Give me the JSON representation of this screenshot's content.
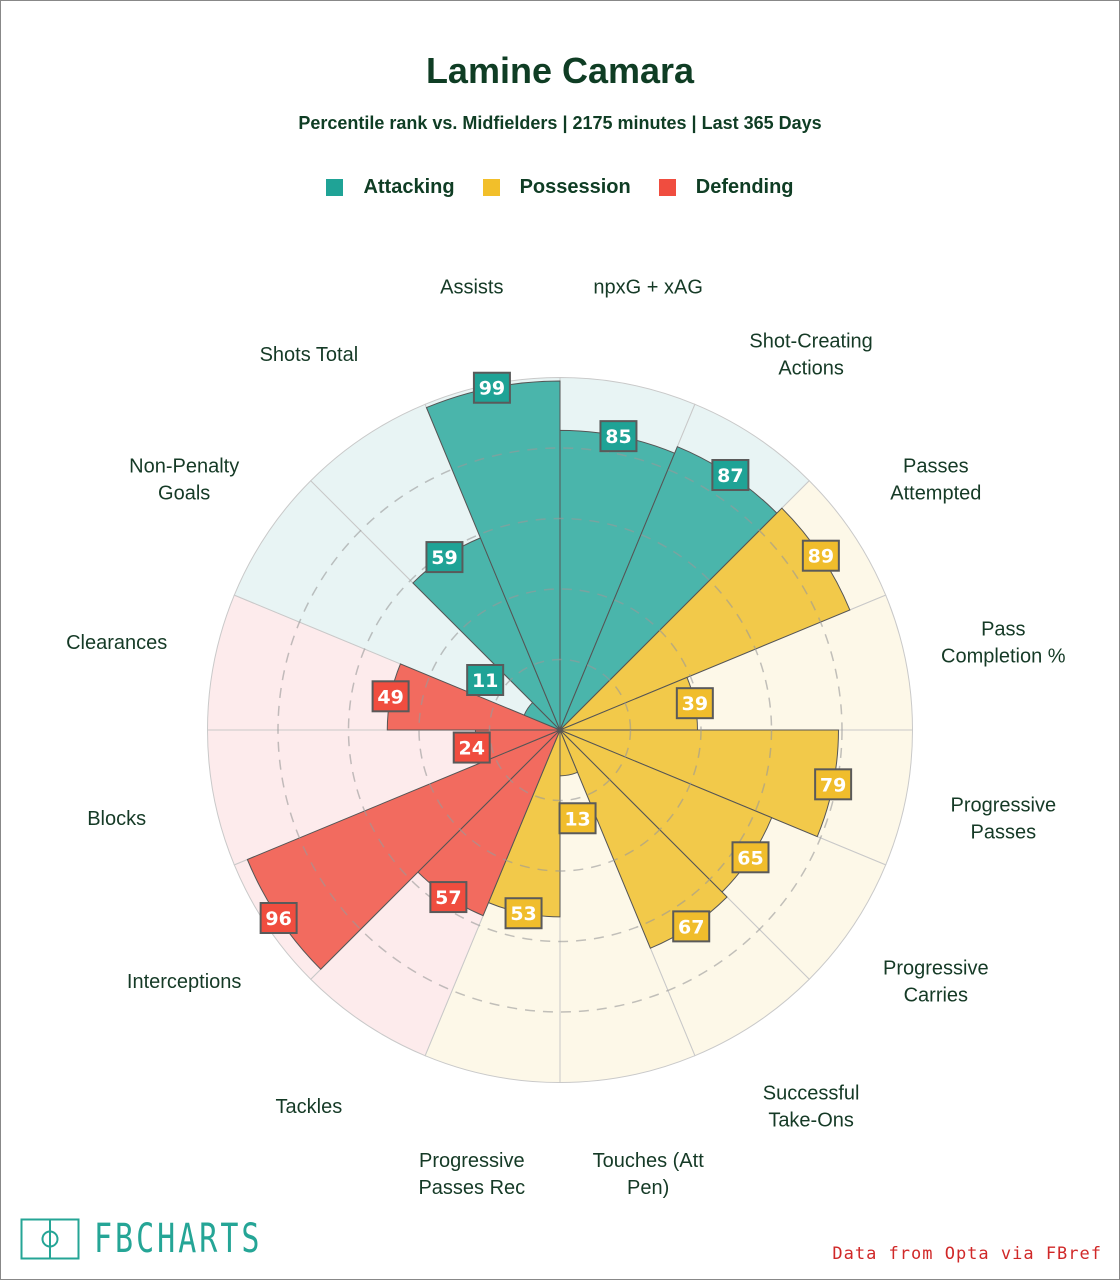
{
  "header": {
    "title": "Lamine Camara",
    "subtitle": "Percentile rank vs. Midfielders | 2175 minutes | Last 365 Days"
  },
  "legend": [
    {
      "label": "Attacking",
      "color": "#1fa396"
    },
    {
      "label": "Possession",
      "color": "#f2bf2a"
    },
    {
      "label": "Defending",
      "color": "#f04d3f"
    }
  ],
  "footer": {
    "logo_text": "FBCHARTS",
    "credit": "Data from Opta via FBref"
  },
  "colors": {
    "attacking": {
      "fill": "#4ab5ab",
      "bg": "#e8f4f4",
      "box": "#1fa396"
    },
    "possession": {
      "fill": "#f2c94a",
      "bg": "#fdf8e8",
      "box": "#f0bd2c"
    },
    "defending": {
      "fill": "#f26b5f",
      "bg": "#fdebec",
      "box": "#f04d3f"
    }
  },
  "chart_data": {
    "type": "pizza",
    "title": "Lamine Camara",
    "value_range": [
      0,
      100
    ],
    "gridlines": [
      20,
      40,
      60,
      80
    ],
    "order": "clockwise from top",
    "slices": [
      {
        "label": [
          "npxG + xAG"
        ],
        "value": 85,
        "group": "attacking"
      },
      {
        "label": [
          "Shot-Creating",
          "Actions"
        ],
        "value": 87,
        "group": "attacking"
      },
      {
        "label": [
          "Passes",
          "Attempted"
        ],
        "value": 89,
        "group": "possession"
      },
      {
        "label": [
          "Pass",
          "Completion %"
        ],
        "value": 39,
        "group": "possession"
      },
      {
        "label": [
          "Progressive",
          "Passes"
        ],
        "value": 79,
        "group": "possession"
      },
      {
        "label": [
          "Progressive",
          "Carries"
        ],
        "value": 65,
        "group": "possession"
      },
      {
        "label": [
          "Successful",
          "Take-Ons"
        ],
        "value": 67,
        "group": "possession"
      },
      {
        "label": [
          "Touches (Att",
          "Pen)"
        ],
        "value": 13,
        "group": "possession"
      },
      {
        "label": [
          "Progressive",
          "Passes Rec"
        ],
        "value": 53,
        "group": "possession"
      },
      {
        "label": [
          "Tackles"
        ],
        "value": 57,
        "group": "defending"
      },
      {
        "label": [
          "Interceptions"
        ],
        "value": 96,
        "group": "defending"
      },
      {
        "label": [
          "Blocks"
        ],
        "value": 24,
        "group": "defending"
      },
      {
        "label": [
          "Clearances"
        ],
        "value": 49,
        "group": "defending"
      },
      {
        "label": [
          "Non-Penalty",
          "Goals"
        ],
        "value": 11,
        "group": "attacking"
      },
      {
        "label": [
          "Shots Total"
        ],
        "value": 59,
        "group": "attacking"
      },
      {
        "label": [
          "Assists"
        ],
        "value": 99,
        "group": "attacking"
      }
    ]
  }
}
